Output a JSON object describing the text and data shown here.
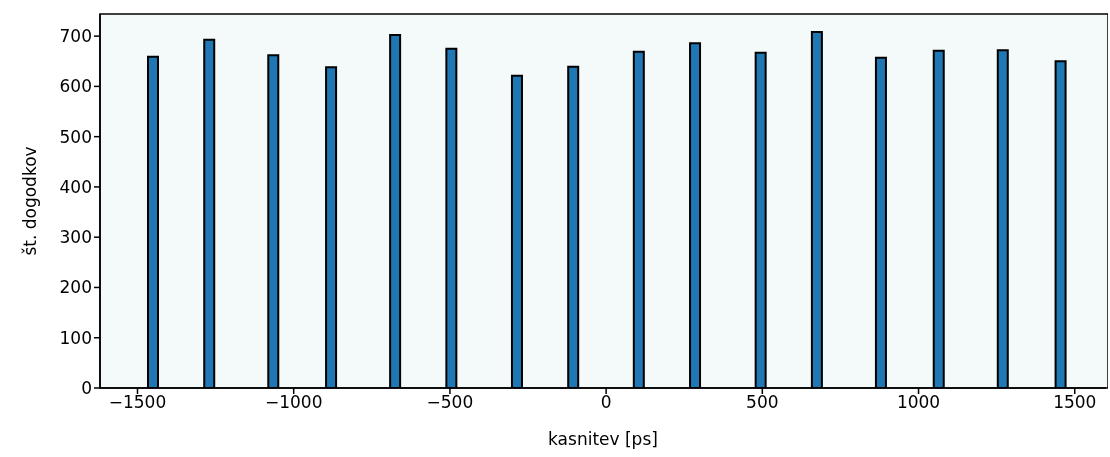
{
  "chart_data": {
    "type": "bar",
    "xlabel": "kasnitev [ps]",
    "ylabel": "št. dogodkov",
    "x": [
      -1450,
      -1270,
      -1065,
      -880,
      -675,
      -495,
      -285,
      -105,
      105,
      285,
      495,
      675,
      880,
      1065,
      1270,
      1455
    ],
    "values": [
      659,
      693,
      662,
      638,
      702,
      675,
      621,
      639,
      669,
      686,
      667,
      708,
      657,
      671,
      672,
      650
    ],
    "color": "#1f77b4",
    "xlim": [
      -1620,
      1600
    ],
    "xticks": [
      {
        "value": -1500,
        "label": "−1500"
      },
      {
        "value": -1000,
        "label": "−1000"
      },
      {
        "value": -500,
        "label": "−500"
      },
      0,
      500,
      1000,
      1500
    ],
    "ylim": [
      0,
      744
    ],
    "yticks": [
      0,
      100,
      200,
      300,
      400,
      500,
      600,
      700
    ],
    "grid": false
  }
}
